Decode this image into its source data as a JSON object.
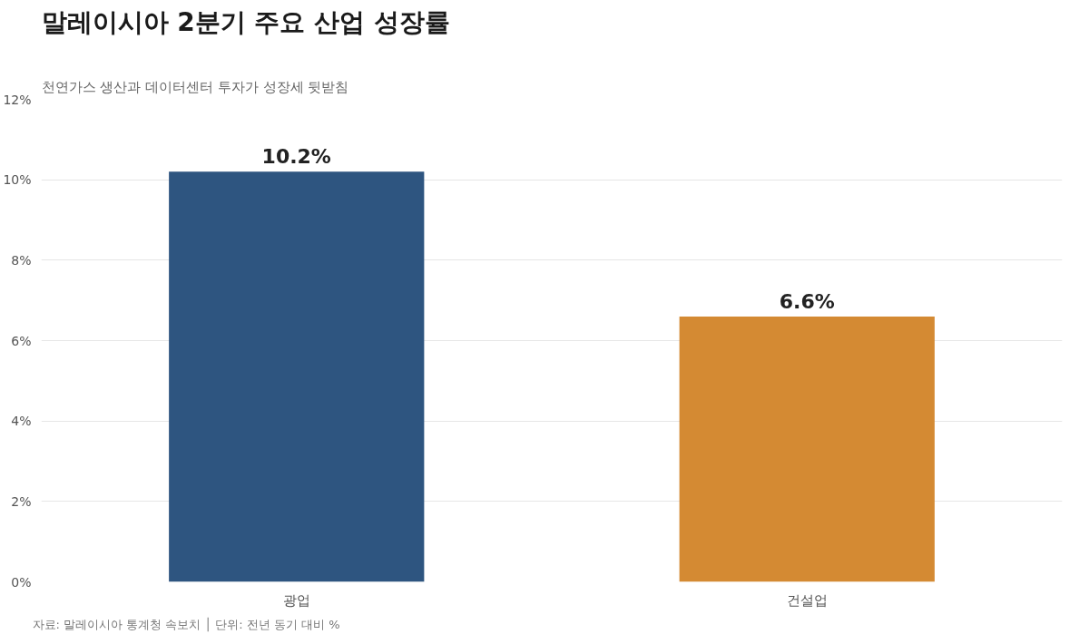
{
  "chart_data": {
    "type": "bar",
    "title": "말레이시아 2분기 주요 산업 성장률",
    "subtitle": "천연가스 생산과 데이터센터 투자가 성장세 뒷받침",
    "categories": [
      "광업",
      "건설업"
    ],
    "values": [
      10.2,
      6.6
    ],
    "colors": [
      "#2e5580",
      "#d48a33"
    ],
    "value_labels": [
      "10.2%",
      "6.6%"
    ],
    "ylim": [
      0,
      12
    ],
    "yticks": [
      {
        "value": 0,
        "label": "0%"
      },
      {
        "value": 2,
        "label": "2%"
      },
      {
        "value": 4,
        "label": "4%"
      },
      {
        "value": 6,
        "label": "6%"
      },
      {
        "value": 8,
        "label": "8%"
      },
      {
        "value": 10,
        "label": "10%"
      },
      {
        "value": 12,
        "label": "12%"
      }
    ],
    "grid": "y",
    "annotations": [
      "자료: 말레이시아 통계청 속보치 │ 단위: 전년 동기 대비 %"
    ]
  }
}
